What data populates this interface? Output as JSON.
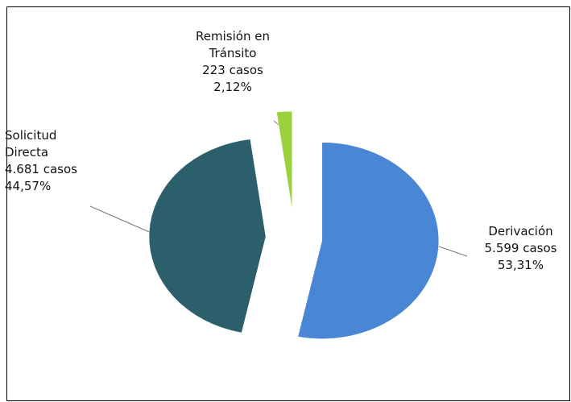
{
  "chart_data": {
    "type": "pie",
    "categories": [
      "Derivación",
      "Solicitud Directa",
      "Remisión en Tránsito"
    ],
    "values": [
      53.31,
      44.57,
      2.12
    ],
    "value_labels": [
      "53,31%",
      "44,57%",
      "2,12%"
    ],
    "counts": [
      5599,
      4681,
      223
    ],
    "count_labels": [
      "5.599 casos",
      "4.681 casos",
      "223 casos"
    ],
    "colors": [
      "#4a86d6",
      "#2b5f6b",
      "#9bd13a"
    ]
  }
}
